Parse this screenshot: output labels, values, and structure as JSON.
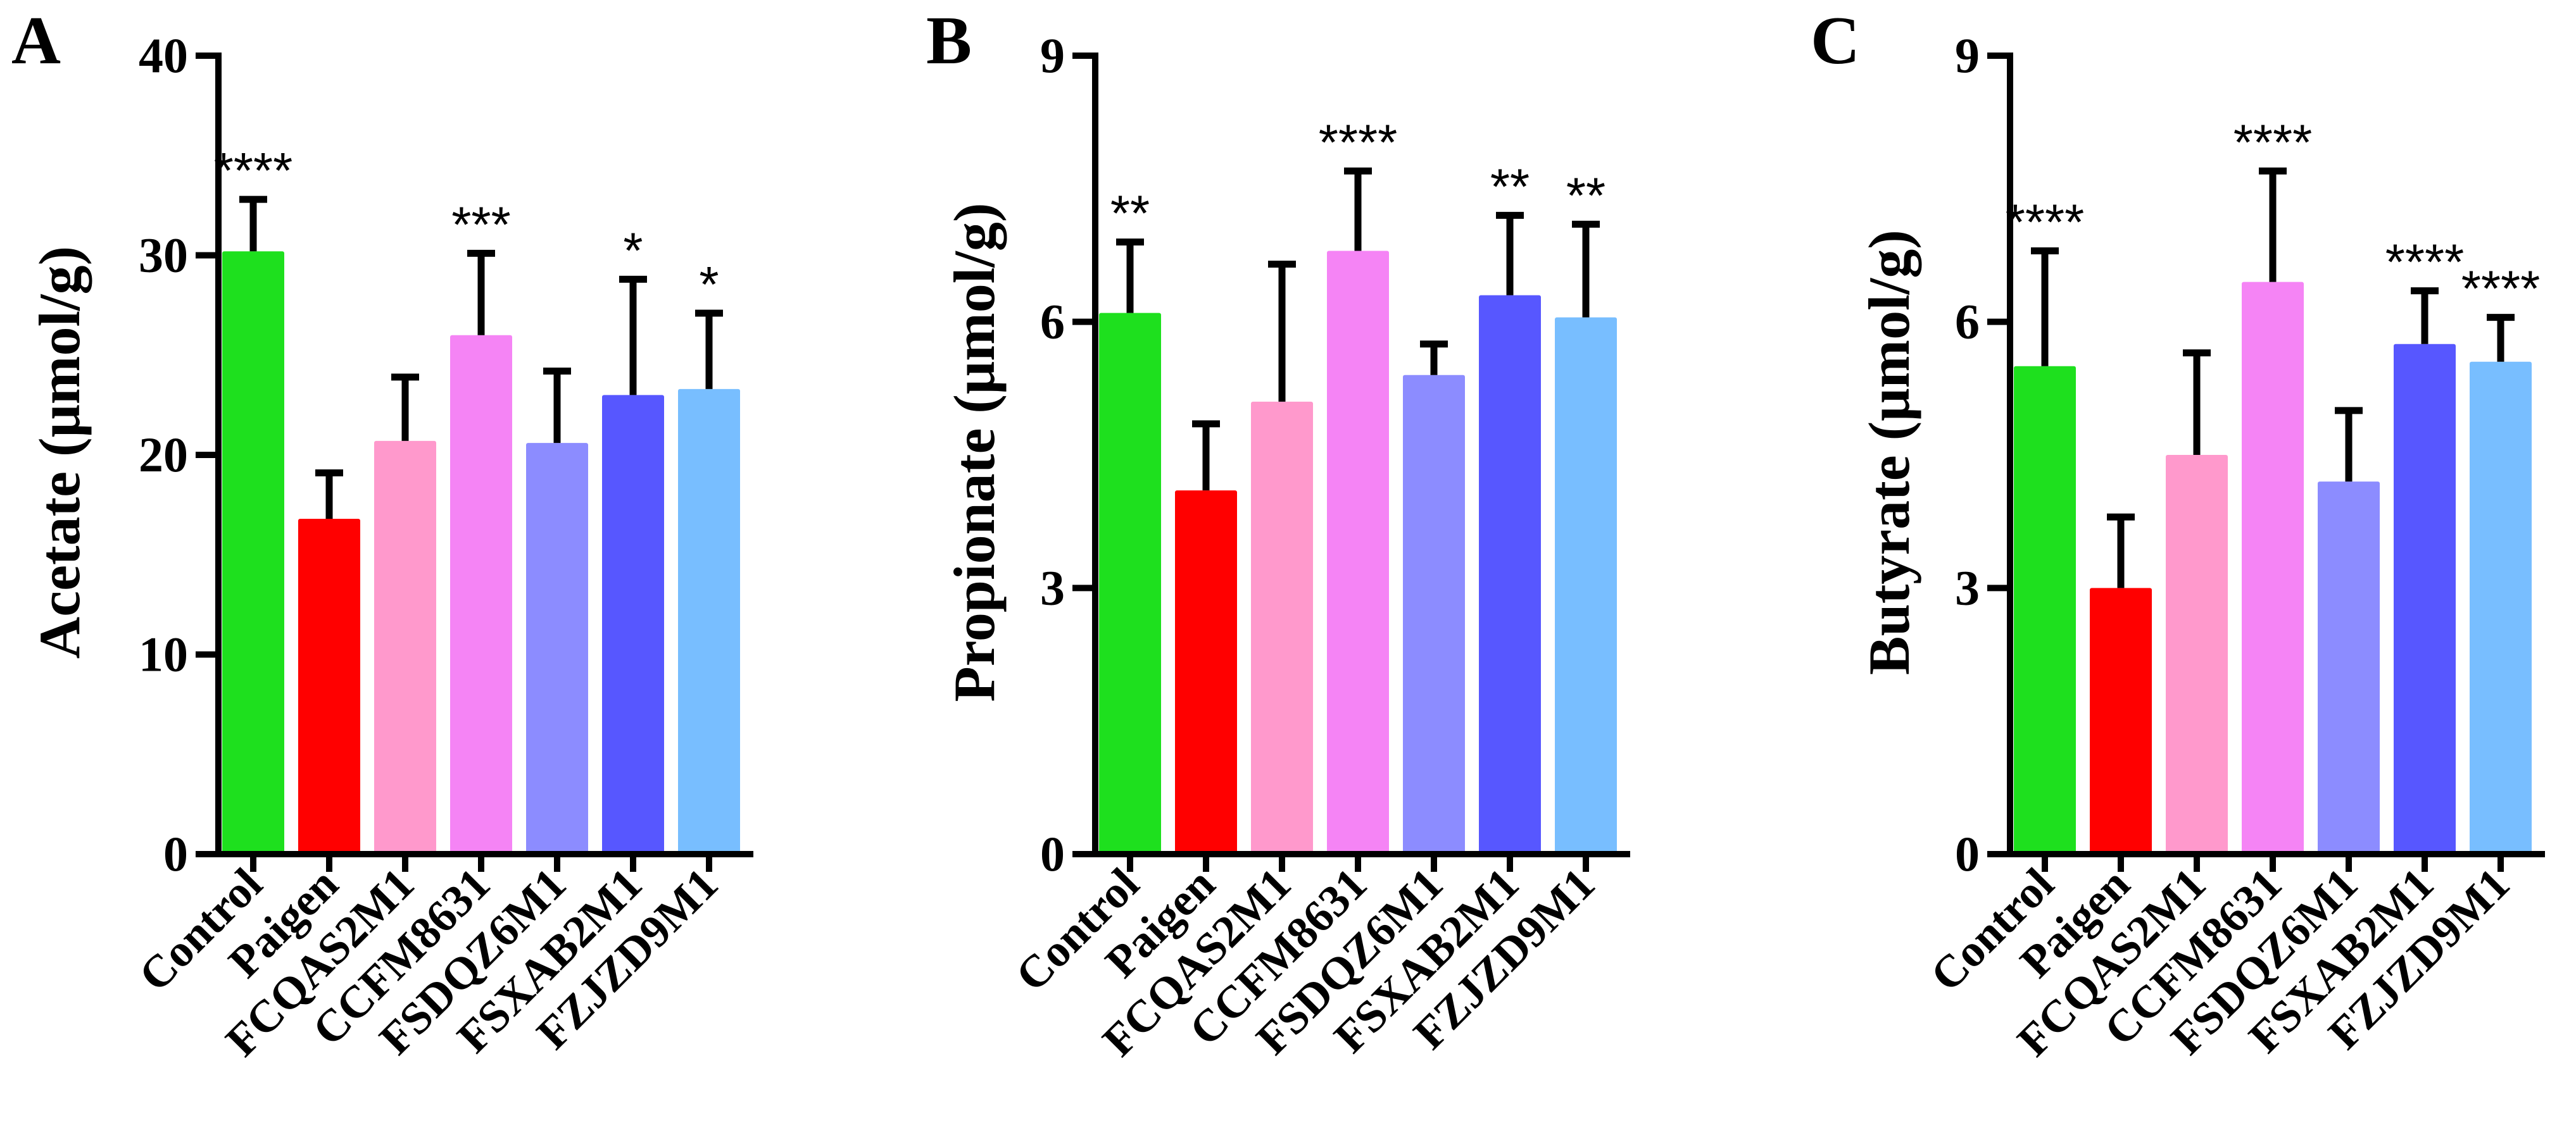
{
  "chart_data": [
    {
      "type": "bar",
      "panel": "A",
      "xlabel": "",
      "ylabel": "Acetate (μmol/g)",
      "ylim": [
        0,
        40
      ],
      "yticks": [
        "0",
        "10",
        "20",
        "30",
        "40"
      ],
      "categories": [
        "Control",
        "Paigen",
        "FCQAS2M1",
        "CCFM8631",
        "FSDQZ6M1",
        "FSXAB2M1",
        "FZJZD9M1"
      ],
      "values": [
        30.2,
        16.8,
        20.7,
        26.0,
        20.6,
        23.0,
        23.3
      ],
      "errors": [
        2.6,
        2.3,
        3.2,
        4.1,
        3.6,
        5.8,
        3.8
      ],
      "significance": [
        "****",
        "",
        "",
        "***",
        "",
        "*",
        "*"
      ],
      "colors": [
        "#1EE01E",
        "#FF0000",
        "#FF99CC",
        "#F584F5",
        "#8C8CFF",
        "#5757FF",
        "#78BEFF"
      ]
    },
    {
      "type": "bar",
      "panel": "B",
      "xlabel": "",
      "ylabel": "Propionate (μmol/g)",
      "ylim": [
        0,
        9
      ],
      "yticks": [
        "0",
        "3",
        "6",
        "9"
      ],
      "categories": [
        "Control",
        "Paigen",
        "FCQAS2M1",
        "CCFM8631",
        "FSDQZ6M1",
        "FSXAB2M1",
        "FZJZD9M1"
      ],
      "values": [
        6.1,
        4.1,
        5.1,
        6.8,
        5.4,
        6.3,
        6.05
      ],
      "errors": [
        0.8,
        0.75,
        1.55,
        0.9,
        0.35,
        0.9,
        1.05
      ],
      "significance": [
        "**",
        "",
        "",
        "****",
        "",
        "**",
        "**"
      ],
      "colors": [
        "#1EE01E",
        "#FF0000",
        "#FF99CC",
        "#F584F5",
        "#8C8CFF",
        "#5757FF",
        "#78BEFF"
      ]
    },
    {
      "type": "bar",
      "panel": "C",
      "xlabel": "",
      "ylabel": "Butyrate (μmol/g)",
      "ylim": [
        0,
        9
      ],
      "yticks": [
        "0",
        "3",
        "6",
        "9"
      ],
      "categories": [
        "Control",
        "Paigen",
        "FCQAS2M1",
        "CCFM8631",
        "FSDQZ6M1",
        "FSXAB2M1",
        "FZJZD9M1"
      ],
      "values": [
        5.5,
        3.0,
        4.5,
        6.45,
        4.2,
        5.75,
        5.55
      ],
      "errors": [
        1.3,
        0.8,
        1.15,
        1.25,
        0.8,
        0.6,
        0.5
      ],
      "significance": [
        "****",
        "",
        "",
        "****",
        "",
        "****",
        "****"
      ],
      "colors": [
        "#1EE01E",
        "#FF0000",
        "#FF99CC",
        "#F584F5",
        "#8C8CFF",
        "#5757FF",
        "#78BEFF"
      ]
    }
  ]
}
